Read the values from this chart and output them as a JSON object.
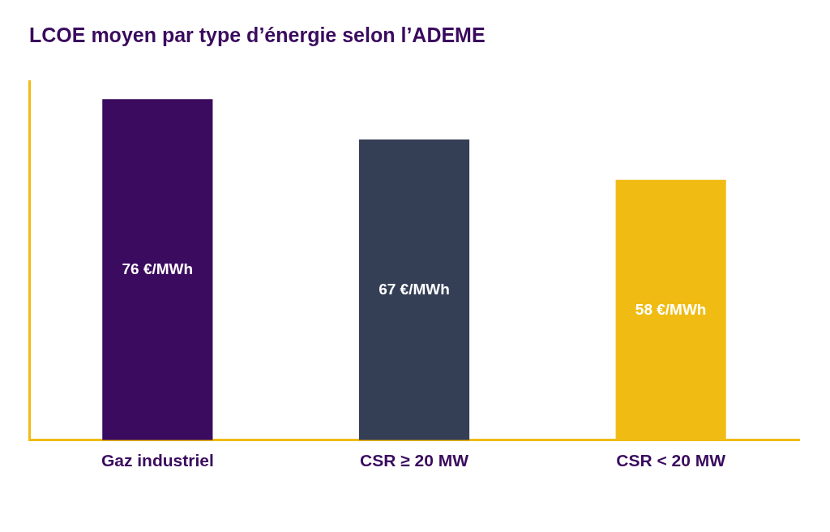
{
  "chart_data": {
    "type": "bar",
    "title": "LCOE moyen par type d’énergie selon l’ADEME",
    "categories": [
      "Gaz industriel",
      "CSR ≥ 20 MW",
      "CSR < 20 MW"
    ],
    "values": [
      76,
      67,
      58
    ],
    "colors": [
      "#3a0b5e",
      "#343f55",
      "#f0bc14"
    ],
    "value_labels": [
      "76 €/MWh",
      "67 €/MWh",
      "58 €/MWh"
    ],
    "tick_labels": "x",
    "grid": false,
    "legend": false
  }
}
